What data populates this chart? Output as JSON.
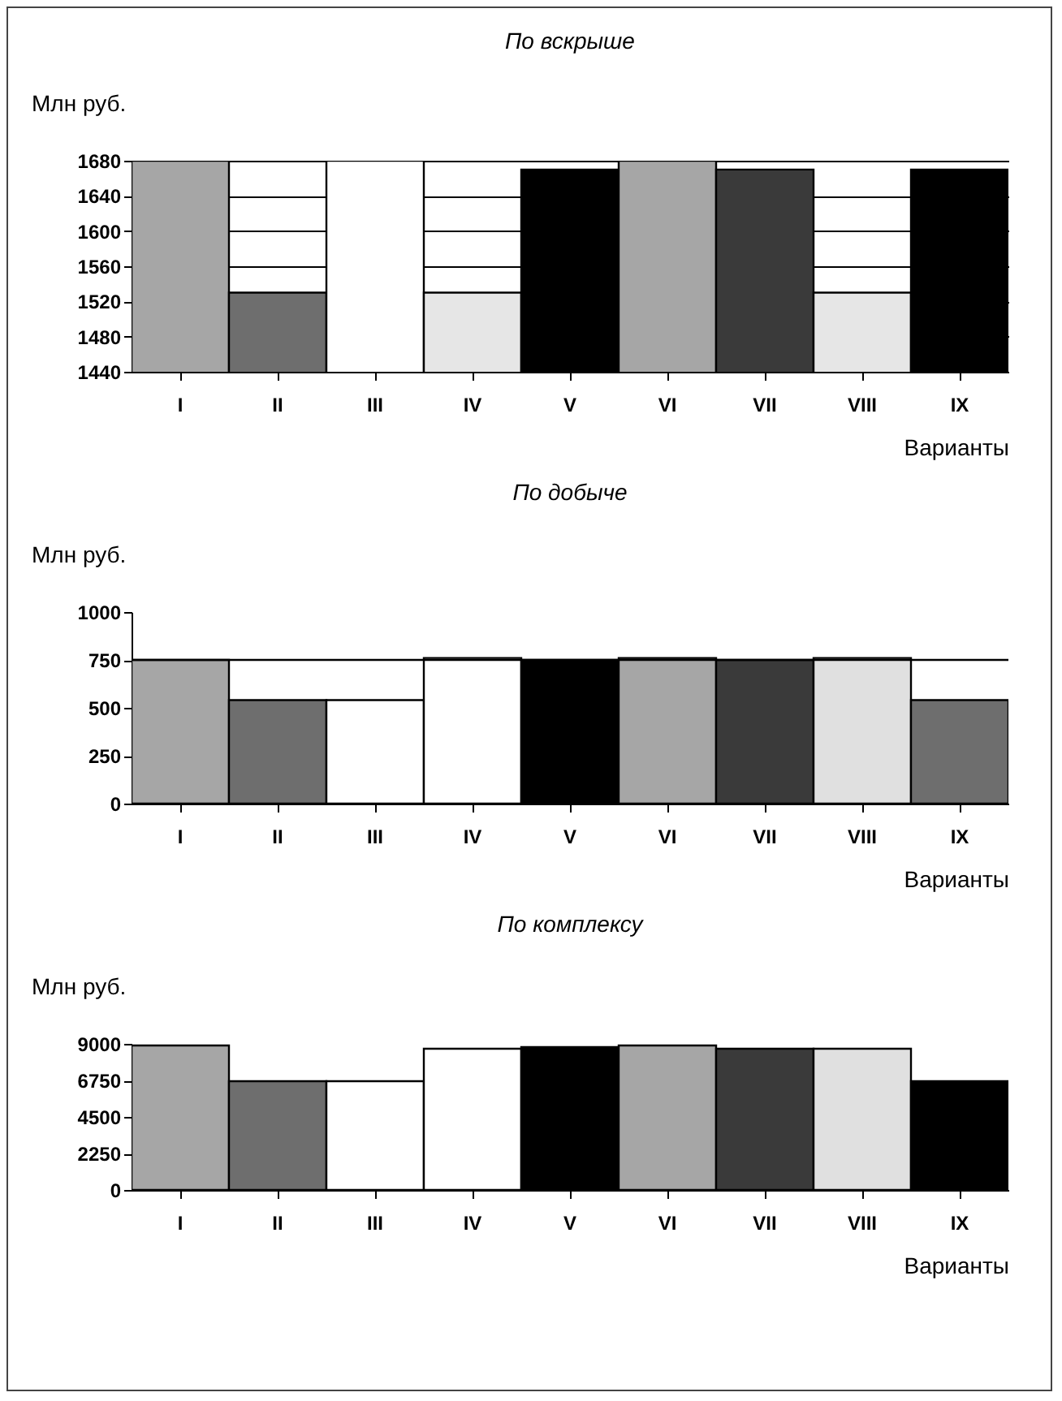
{
  "chart_data": [
    {
      "type": "bar",
      "title": "По вскрыше",
      "ylabel": "Млн руб.",
      "xlabel": "Варианты",
      "categories": [
        "I",
        "II",
        "III",
        "IV",
        "V",
        "VI",
        "VII",
        "VIII",
        "IX"
      ],
      "values": [
        1680,
        1530,
        1680,
        1530,
        1670,
        1680,
        1670,
        1530,
        1670
      ],
      "colors": [
        "#a6a6a6",
        "#6e6e6e",
        "#ffffff",
        "#e6e6e6",
        "#000000",
        "#a6a6a6",
        "#3a3a3a",
        "#e6e6e6",
        "#000000"
      ],
      "ylim": [
        1440,
        1680
      ],
      "yticks": [
        1440,
        1480,
        1520,
        1560,
        1600,
        1640,
        1680
      ],
      "grid": "y"
    },
    {
      "type": "bar",
      "title": "По добыче",
      "ylabel": "Млн руб.",
      "xlabel": "Варианты",
      "categories": [
        "I",
        "II",
        "III",
        "IV",
        "V",
        "VI",
        "VII",
        "VIII",
        "IX"
      ],
      "values": [
        750,
        540,
        540,
        760,
        750,
        760,
        750,
        760,
        540
      ],
      "colors": [
        "#a6a6a6",
        "#6e6e6e",
        "#ffffff",
        "#ffffff",
        "#000000",
        "#a6a6a6",
        "#3a3a3a",
        "#e0e0e0",
        "#6e6e6e"
      ],
      "ylim": [
        0,
        1000
      ],
      "yticks": [
        0,
        250,
        500,
        750,
        1000
      ],
      "ref_lines": [
        {
          "axis": "y",
          "value": 750,
          "color": "#000000"
        }
      ]
    },
    {
      "type": "bar",
      "title": "По комплексу",
      "ylabel": "Млн руб.",
      "xlabel": "Варианты",
      "categories": [
        "I",
        "II",
        "III",
        "IV",
        "V",
        "VI",
        "VII",
        "VIII",
        "IX"
      ],
      "values": [
        8900,
        6700,
        6700,
        8700,
        8800,
        8900,
        8700,
        8700,
        6700
      ],
      "colors": [
        "#a6a6a6",
        "#6e6e6e",
        "#ffffff",
        "#ffffff",
        "#000000",
        "#a6a6a6",
        "#3a3a3a",
        "#e0e0e0",
        "#000000"
      ],
      "ylim": [
        0,
        9000
      ],
      "yticks": [
        0,
        2250,
        4500,
        6750,
        9000
      ]
    }
  ]
}
